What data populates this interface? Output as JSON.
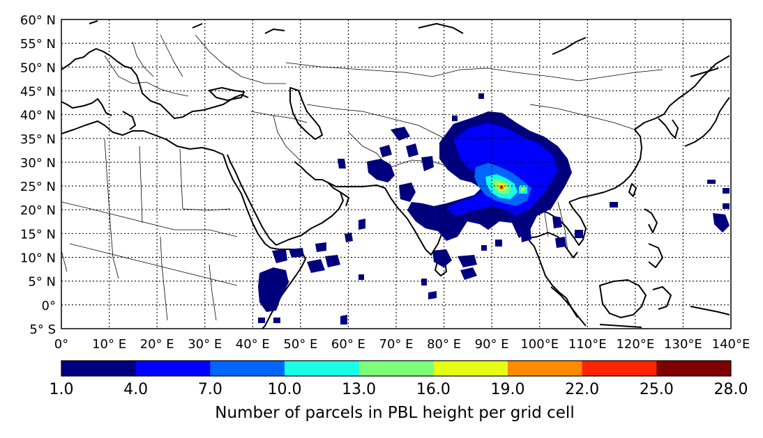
{
  "map": {
    "lat_labels": [
      "60° N",
      "55° N",
      "50° N",
      "45° N",
      "40° N",
      "35° N",
      "30° N",
      "25° N",
      "20° N",
      "15° N",
      "10° N",
      "5° N",
      "0°",
      "5° S"
    ],
    "lon_labels": [
      "0°",
      "10° E",
      "20° E",
      "30° E",
      "40° E",
      "50° E",
      "60° E",
      "70° E",
      "80° E",
      "90° E",
      "100°E",
      "110°E",
      "120°E",
      "130°E",
      "140°E"
    ],
    "lat_range": [
      -5,
      60
    ],
    "lon_range": [
      0,
      140
    ],
    "grid": true
  },
  "colorbar": {
    "ticks": [
      "1.0",
      "4.0",
      "7.0",
      "10.0",
      "13.0",
      "16.0",
      "19.0",
      "22.0",
      "25.0",
      "28.0"
    ],
    "colors": [
      "#00007f",
      "#0000ff",
      "#0066ff",
      "#18ffe5",
      "#7cff79",
      "#e4ff13",
      "#ff8a00",
      "#ff2300",
      "#7f0000"
    ],
    "title": "Number of parcels in PBL height per grid cell"
  }
}
